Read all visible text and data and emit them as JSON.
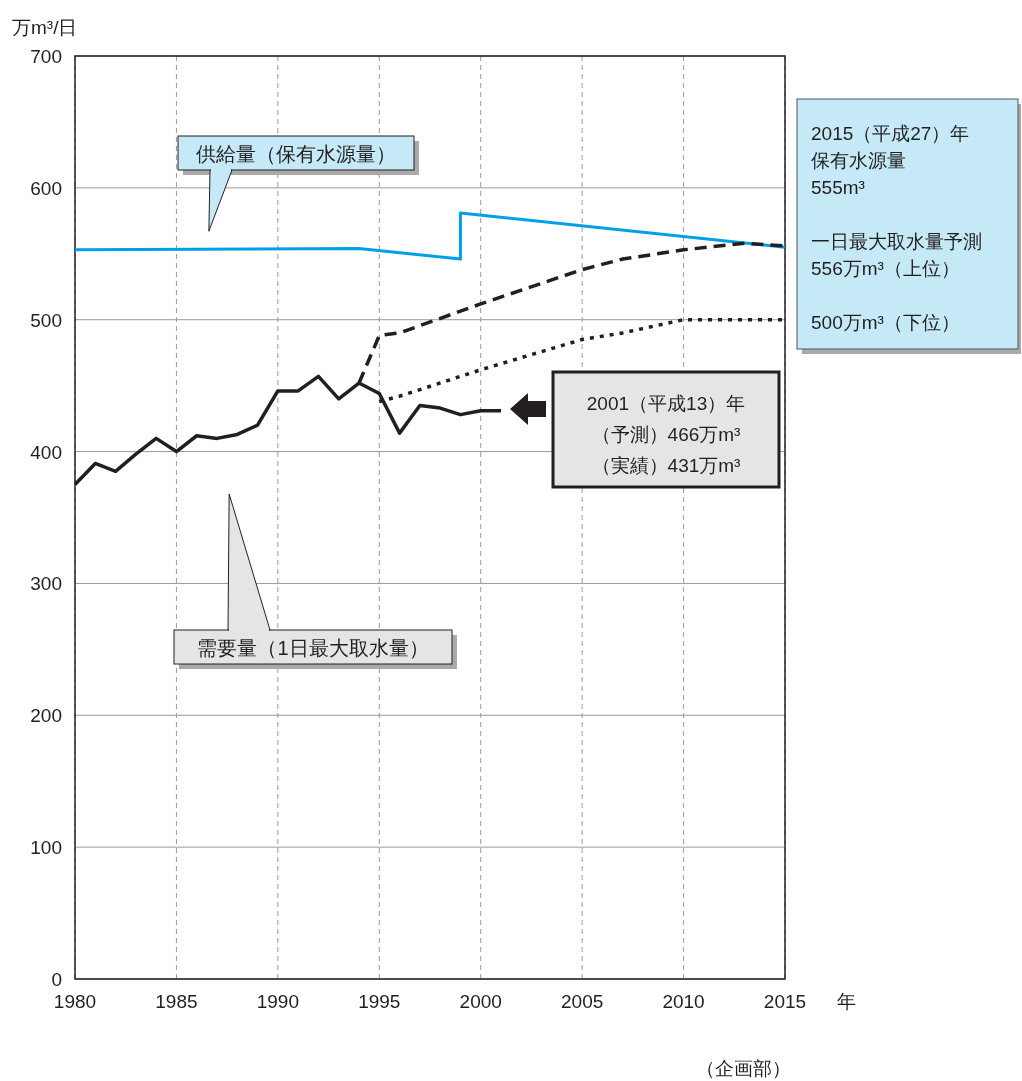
{
  "chart_data": {
    "type": "line",
    "ylabel": "万m³/日",
    "xlabel": "年",
    "xlim": [
      1980,
      2015
    ],
    "xticks": [
      1980,
      1985,
      1990,
      1995,
      2000,
      2005,
      2010,
      2015
    ],
    "ylim": [
      0,
      700
    ],
    "yticks": [
      0,
      100,
      200,
      300,
      400,
      500,
      600,
      700
    ],
    "grid": true,
    "legend": false,
    "series": [
      {
        "name": "供給量（保有水源量）",
        "color": "#00a0e9",
        "line_style": "solid",
        "x": [
          1980,
          1994,
          1999,
          1999,
          2015
        ],
        "values": [
          553,
          554,
          546,
          581,
          555
        ]
      },
      {
        "name": "需要量（1日最大取水量）",
        "color": "#231f20",
        "line_style": "solid",
        "x": [
          1980,
          1981,
          1982,
          1983,
          1984,
          1985,
          1986,
          1987,
          1988,
          1989,
          1990,
          1991,
          1992,
          1993,
          1994,
          1995,
          1996,
          1997,
          1998,
          1999,
          2000,
          2001
        ],
        "values": [
          375,
          391,
          385,
          398,
          410,
          400,
          412,
          410,
          413,
          420,
          446,
          446,
          457,
          440,
          452,
          444,
          414,
          435,
          433,
          428,
          431,
          431
        ]
      },
      {
        "color": "#231f20",
        "line_style": "dashed",
        "x": [
          1994,
          1995,
          1996,
          2000,
          2005,
          2007,
          2010,
          2013,
          2015
        ],
        "values": [
          452,
          488,
          490,
          512,
          538,
          546,
          553,
          558,
          556
        ]
      },
      {
        "color": "#231f20",
        "line_style": "dotted",
        "x": [
          1995,
          1996,
          2000,
          2005,
          2007,
          2010,
          2015
        ],
        "values": [
          438,
          442,
          462,
          485,
          490,
          500,
          500
        ]
      }
    ],
    "annotations": [
      "2015（平成27）年",
      "保有水源量",
      "555m³",
      "一日最大取水量予測",
      "556万m³（上位）",
      "500万m³（下位）",
      "2001（平成13）年",
      "（予測）466万m³",
      "（実績）431万m³",
      "（企画部）"
    ]
  }
}
